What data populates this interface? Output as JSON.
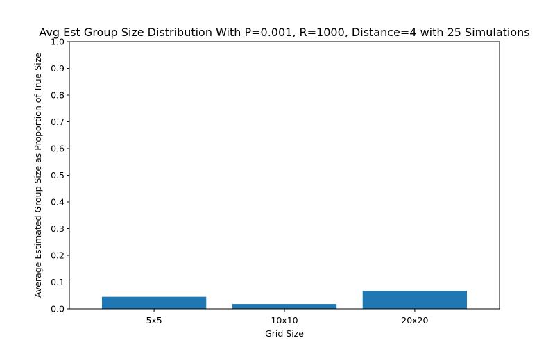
{
  "chart_data": {
    "type": "bar",
    "title": "Avg Est Group Size Distribution With P=0.001, R=1000, Distance=4 with 25 Simulations",
    "xlabel": "Grid Size",
    "ylabel": "Average Estimated Group Size as Proportion of True Size",
    "categories": [
      "5x5",
      "10x10",
      "20x20"
    ],
    "values": [
      0.045,
      0.018,
      0.067
    ],
    "ylim": [
      0.0,
      1.0
    ],
    "yticks": [
      "0.0",
      "0.1",
      "0.2",
      "0.3",
      "0.4",
      "0.5",
      "0.6",
      "0.7",
      "0.8",
      "0.9",
      "1.0"
    ],
    "grid": false,
    "bar_color": "#1f77b4"
  }
}
